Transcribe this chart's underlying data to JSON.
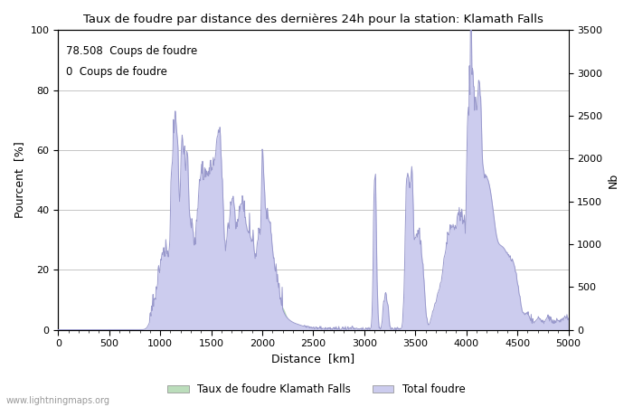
{
  "title": "Taux de foudre par distance des dernières 24h pour la station: Klamath Falls",
  "xlabel": "Distance  [km]",
  "ylabel_left": "Pourcent  [%]",
  "ylabel_right": "Nb",
  "annotation_line1": "78.508  Coups de foudre",
  "annotation_line2": "0  Coups de foudre",
  "xlim": [
    0,
    5000
  ],
  "ylim_left": [
    0,
    100
  ],
  "ylim_right": [
    0,
    3500
  ],
  "xticks": [
    0,
    500,
    1000,
    1500,
    2000,
    2500,
    3000,
    3500,
    4000,
    4500,
    5000
  ],
  "yticks_left": [
    0,
    20,
    40,
    60,
    80,
    100
  ],
  "yticks_right": [
    0,
    500,
    1000,
    1500,
    2000,
    2500,
    3000,
    3500
  ],
  "grid_color": "#bbbbbb",
  "bg_color": "#ffffff",
  "line_color": "#9999cc",
  "fill_color_local": "#bbddbb",
  "fill_color_total": "#ccccee",
  "legend_local": "Taux de foudre Klamath Falls",
  "legend_total": "Total foudre",
  "watermark": "www.lightningmaps.org"
}
